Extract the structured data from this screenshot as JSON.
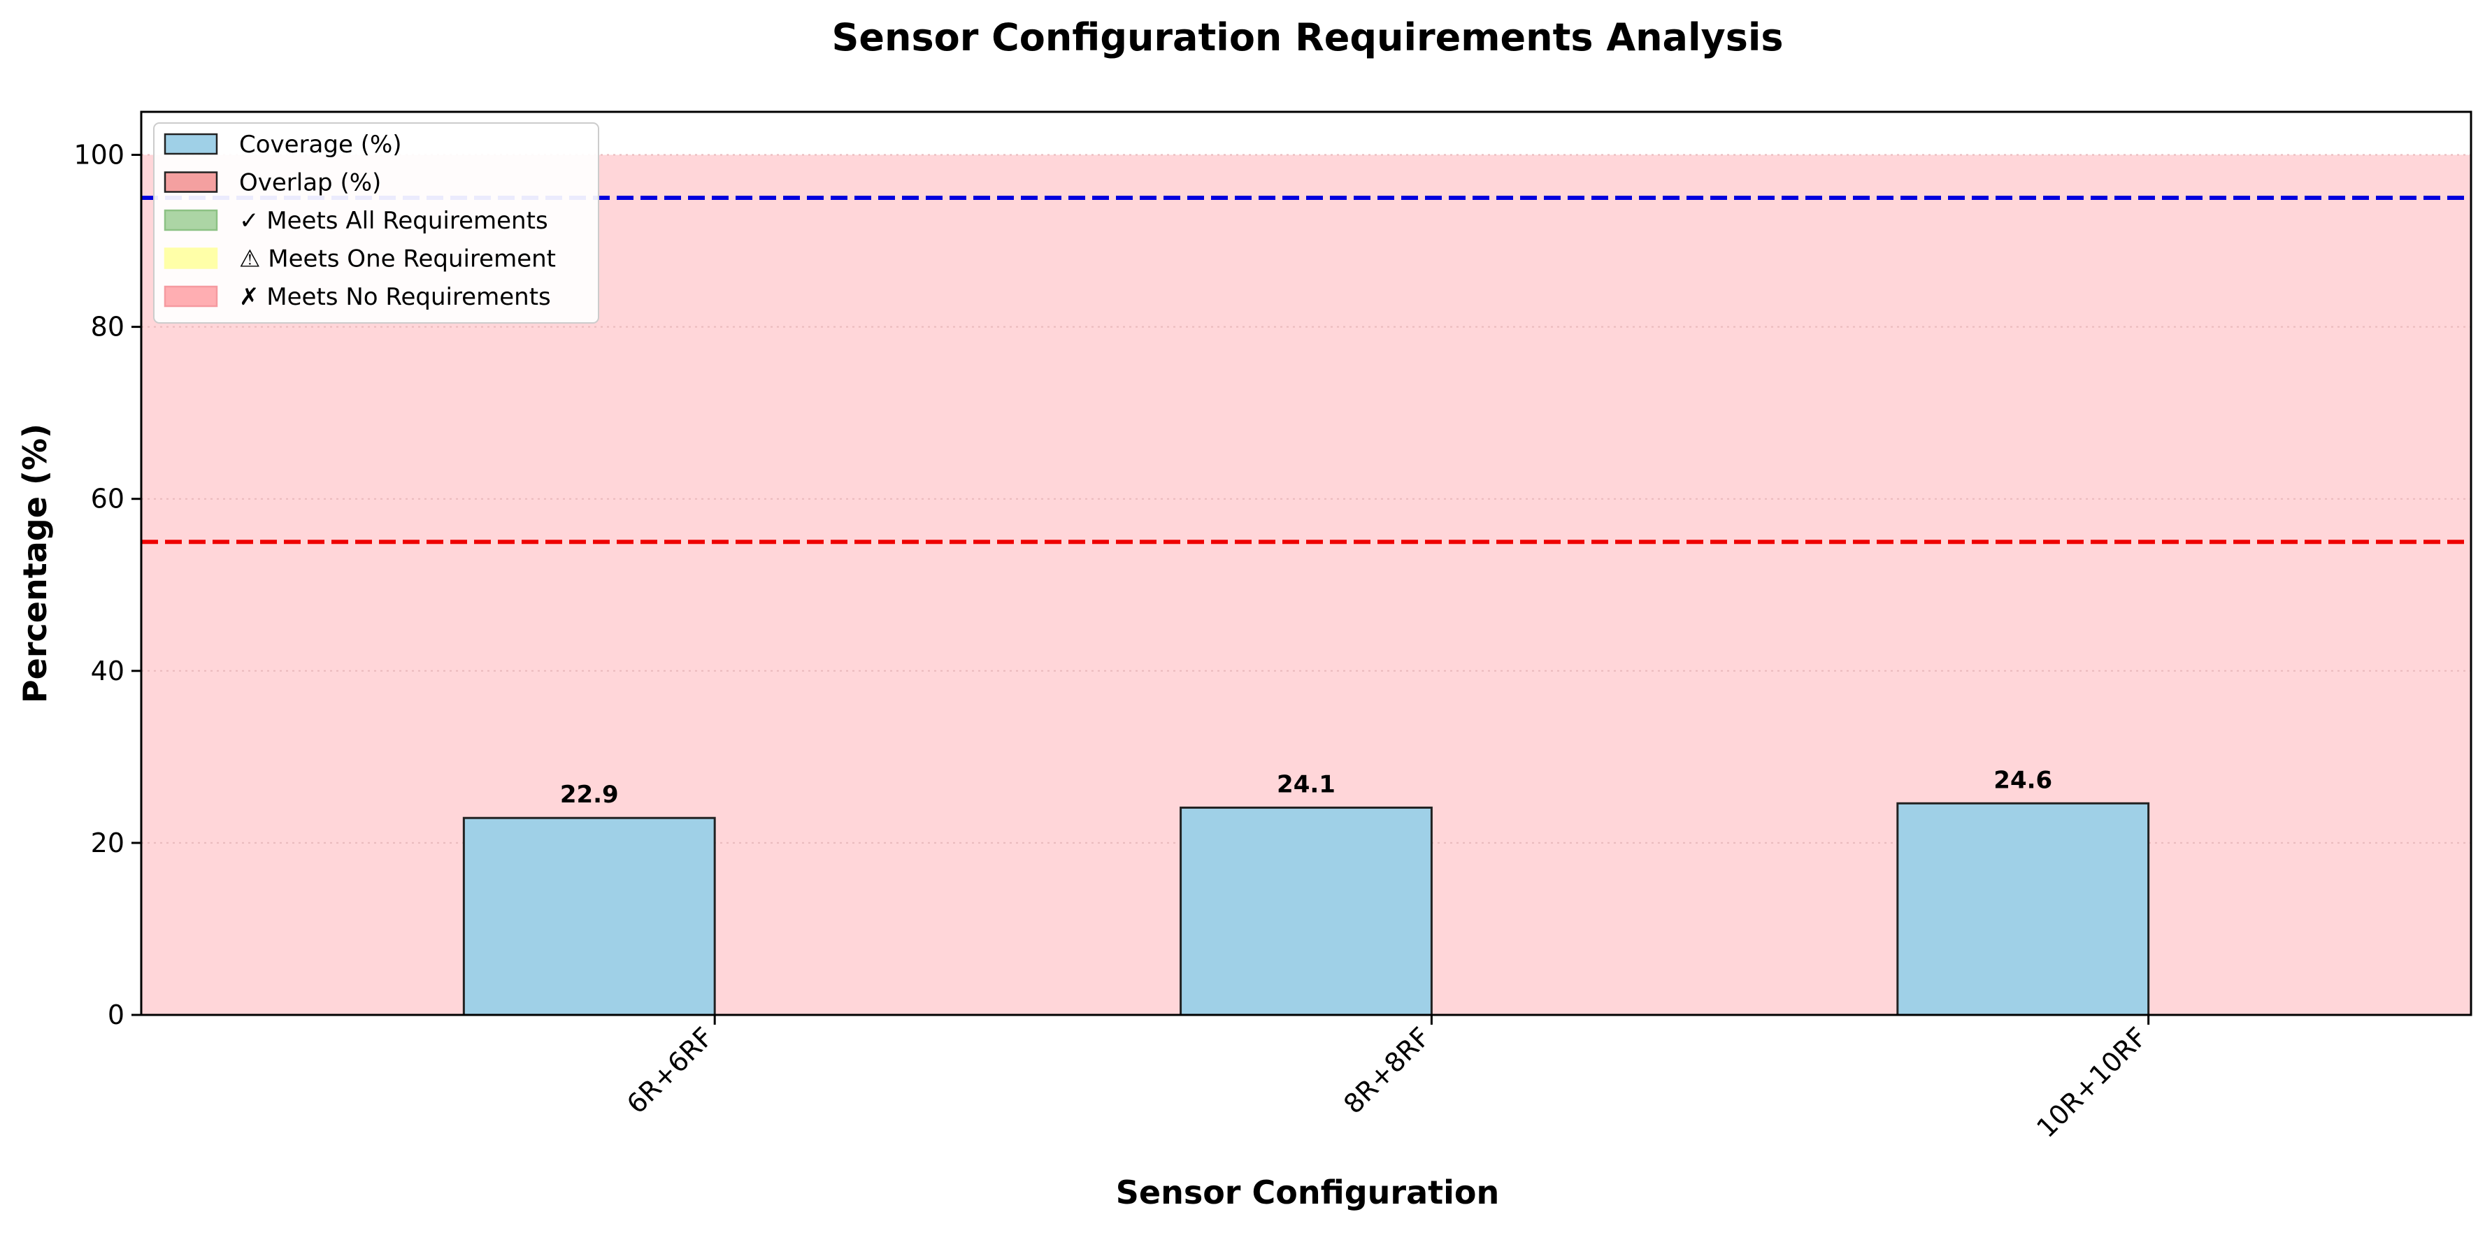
{
  "chart_data": {
    "type": "bar",
    "title": "Sensor Configuration Requirements Analysis",
    "xlabel": "Sensor Configuration",
    "ylabel": "Percentage (%)",
    "ylim": [
      0,
      105
    ],
    "yticks": [
      0,
      20,
      40,
      60,
      80,
      100
    ],
    "grid": "horizontal dotted",
    "categories": [
      "6R+6RF",
      "8R+8RF",
      "10R+10RF"
    ],
    "series": [
      {
        "name": "Coverage (%)",
        "values": [
          22.9,
          24.1,
          24.6
        ],
        "value_labels": [
          "22.9",
          "24.1",
          "24.6"
        ],
        "color": "#9fd0e7"
      },
      {
        "name": "Overlap (%)",
        "values": [
          null,
          null,
          null
        ],
        "color": "#f4a0a0"
      }
    ],
    "reference_lines": [
      {
        "y": 95,
        "color": "#0000dd",
        "style": "dashed"
      },
      {
        "y": 55,
        "color": "#ee0000",
        "style": "dashed"
      }
    ],
    "region": {
      "from": 0,
      "to": 100,
      "color": "#ffd6d9",
      "meaning": "✗ Meets No Requirements"
    },
    "legend": {
      "placement": "top-left",
      "entries": [
        {
          "label": "Coverage (%)",
          "color": "#9fd0e7",
          "edge": "#222222"
        },
        {
          "label": "Overlap (%)",
          "color": "#f4a0a0",
          "edge": "#222222"
        },
        {
          "label": "✓ Meets All Requirements",
          "color": "#acd5a5",
          "edge": "#8cc184"
        },
        {
          "label": "⚠ Meets One Requirement",
          "color": "#ffffa8",
          "edge": "#ffffa8"
        },
        {
          "label": "✗ Meets No Requirements",
          "color": "#ffaeb2",
          "edge": "#f59aa0"
        }
      ]
    }
  }
}
